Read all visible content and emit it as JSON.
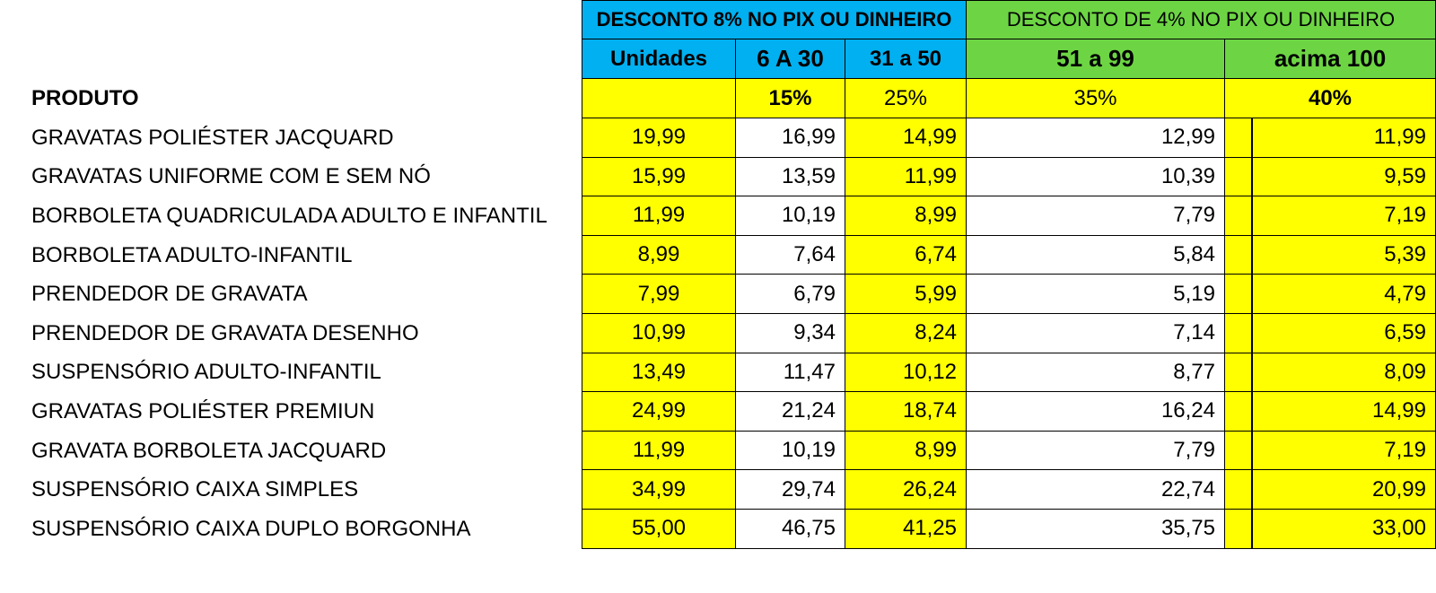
{
  "header": {
    "group1": "DESCONTO 8% NO PIX OU DINHEIRO",
    "group2": "DESCONTO DE 4% NO PIX OU DINHEIRO",
    "col_units": "Unidades",
    "col_6_30": "6 A 30",
    "col_31_50": "31 a 50",
    "col_51_99": "51 a 99",
    "col_100": "acima 100",
    "produto_label": "PRODUTO",
    "pct_6_30": "15%",
    "pct_31_50": "25%",
    "pct_51_99": "35%",
    "pct_100": "40%"
  },
  "rows": [
    {
      "name": "GRAVATAS POLIÉSTER JACQUARD",
      "unit": "19,99",
      "p1": "16,99",
      "p2": "14,99",
      "p3": "12,99",
      "p4": "11,99"
    },
    {
      "name": "GRAVATAS UNIFORME COM E SEM NÓ",
      "unit": "15,99",
      "p1": "13,59",
      "p2": "11,99",
      "p3": "10,39",
      "p4": "9,59"
    },
    {
      "name": "BORBOLETA QUADRICULADA ADULTO E INFANTIL",
      "unit": "11,99",
      "p1": "10,19",
      "p2": "8,99",
      "p3": "7,79",
      "p4": "7,19"
    },
    {
      "name": "BORBOLETA ADULTO-INFANTIL",
      "unit": "8,99",
      "p1": "7,64",
      "p2": "6,74",
      "p3": "5,84",
      "p4": "5,39"
    },
    {
      "name": "PRENDEDOR DE GRAVATA",
      "unit": "7,99",
      "p1": "6,79",
      "p2": "5,99",
      "p3": "5,19",
      "p4": "4,79"
    },
    {
      "name": "PRENDEDOR DE GRAVATA DESENHO",
      "unit": "10,99",
      "p1": "9,34",
      "p2": "8,24",
      "p3": "7,14",
      "p4": "6,59"
    },
    {
      "name": "SUSPENSÓRIO ADULTO-INFANTIL",
      "unit": "13,49",
      "p1": "11,47",
      "p2": "10,12",
      "p3": "8,77",
      "p4": "8,09"
    },
    {
      "name": "GRAVATAS POLIÉSTER PREMIUN",
      "unit": "24,99",
      "p1": "21,24",
      "p2": "18,74",
      "p3": "16,24",
      "p4": "14,99"
    },
    {
      "name": "GRAVATA BORBOLETA JACQUARD",
      "unit": "11,99",
      "p1": "10,19",
      "p2": "8,99",
      "p3": "7,79",
      "p4": "7,19"
    },
    {
      "name": "SUSPENSÓRIO CAIXA SIMPLES",
      "unit": "34,99",
      "p1": "29,74",
      "p2": "26,24",
      "p3": "22,74",
      "p4": "20,99"
    },
    {
      "name": "SUSPENSÓRIO CAIXA DUPLO BORGONHA",
      "unit": "55,00",
      "p1": "46,75",
      "p2": "41,25",
      "p3": "35,75",
      "p4": "33,00"
    }
  ]
}
